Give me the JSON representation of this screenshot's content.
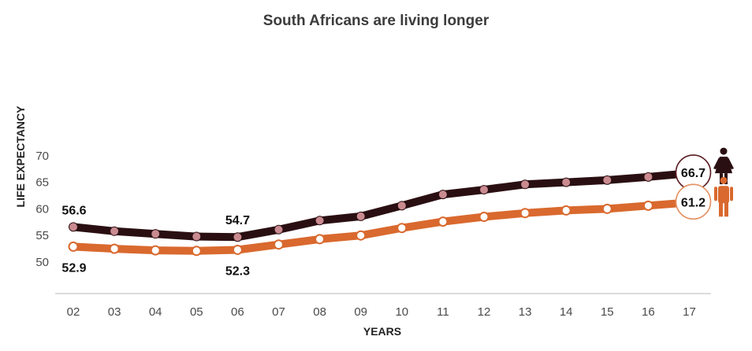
{
  "chart_data": {
    "type": "line",
    "title": "South Africans are living longer",
    "xlabel": "YEARS",
    "ylabel": "LIFE EXPECTANCY",
    "categories": [
      "02",
      "03",
      "04",
      "05",
      "06",
      "07",
      "08",
      "09",
      "10",
      "11",
      "12",
      "13",
      "14",
      "15",
      "16",
      "17"
    ],
    "yticks": [
      50,
      55,
      60,
      65,
      70
    ],
    "ylim": [
      50,
      70
    ],
    "grid": false,
    "series": [
      {
        "color": "#2a0f12",
        "marker_color": "#c98a90",
        "icon": "female-icon",
        "values": [
          56.6,
          55.8,
          55.3,
          54.8,
          54.7,
          56.1,
          57.8,
          58.6,
          60.6,
          62.7,
          63.6,
          64.6,
          65.0,
          65.4,
          66.0,
          66.7
        ],
        "point_labels": {
          "0": "56.6",
          "4": "54.7"
        },
        "end_label": "66.7"
      },
      {
        "color": "#d9692e",
        "marker_color": "#ffffff",
        "icon": "male-icon",
        "values": [
          52.9,
          52.5,
          52.2,
          52.1,
          52.3,
          53.3,
          54.3,
          55.0,
          56.4,
          57.6,
          58.5,
          59.2,
          59.7,
          60.0,
          60.6,
          61.2
        ],
        "point_labels": {
          "0": "52.9",
          "4": "52.3"
        },
        "end_label": "61.2"
      }
    ]
  }
}
